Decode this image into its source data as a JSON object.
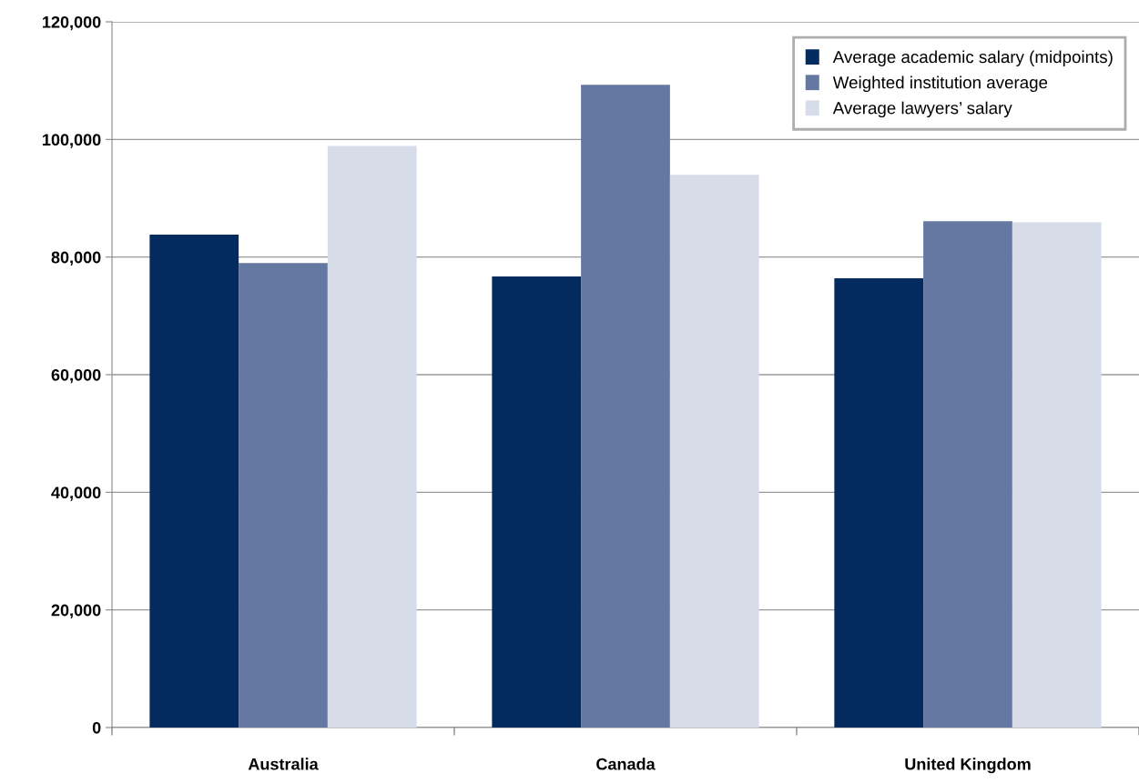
{
  "chart_data": {
    "type": "bar",
    "categories": [
      "Australia",
      "Canada",
      "United Kingdom"
    ],
    "series": [
      {
        "name": "Average academic salary (midpoints)",
        "color": "#032b60",
        "values": [
          83800,
          76700,
          76400
        ]
      },
      {
        "name": "Weighted institution average",
        "color": "#6478a2",
        "values": [
          79000,
          109300,
          86100
        ]
      },
      {
        "name": "Average lawyers’ salary",
        "color": "#d6dce8",
        "values": [
          98900,
          94000,
          85900
        ]
      }
    ],
    "ylim": [
      0,
      120000
    ],
    "yticks": [
      {
        "value": 0,
        "label": "0"
      },
      {
        "value": 20000,
        "label": "20,000"
      },
      {
        "value": 40000,
        "label": "40,000"
      },
      {
        "value": 60000,
        "label": "60,000"
      },
      {
        "value": 80000,
        "label": "80,000"
      },
      {
        "value": 100000,
        "label": "100,000"
      },
      {
        "value": 120000,
        "label": "120,000"
      }
    ],
    "grid": "y",
    "legend": "top right"
  }
}
